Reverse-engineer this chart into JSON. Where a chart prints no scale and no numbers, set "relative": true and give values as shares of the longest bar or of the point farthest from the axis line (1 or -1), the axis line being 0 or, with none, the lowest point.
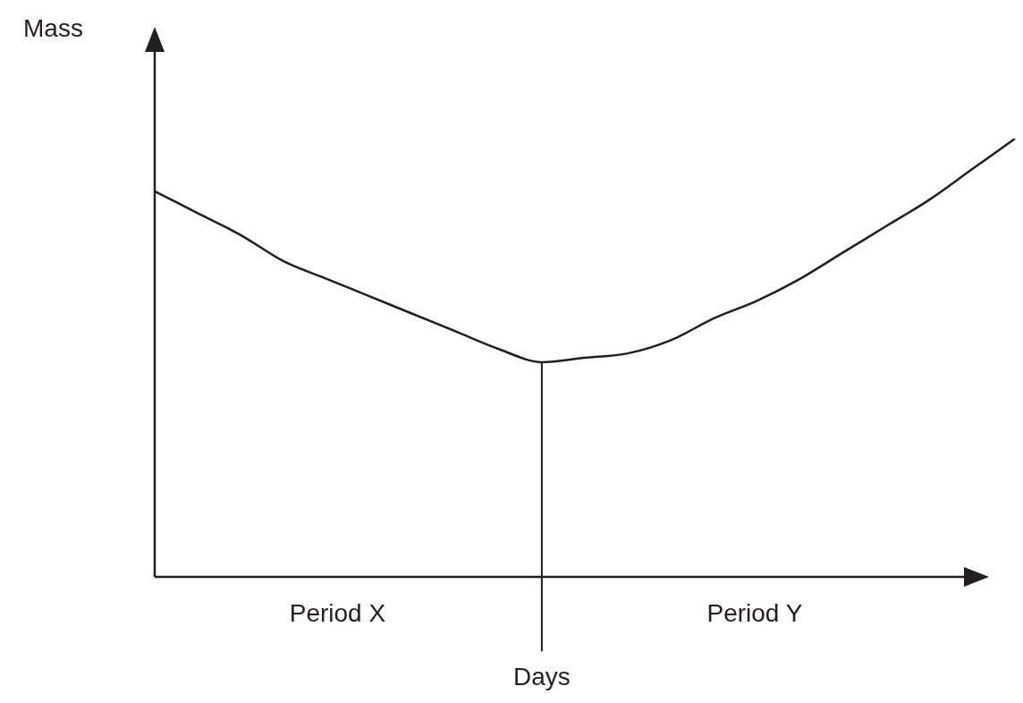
{
  "chart_data": {
    "type": "line",
    "relative": true,
    "xlabel": "Days",
    "ylabel": "Mass",
    "categories": [
      null,
      null,
      null,
      null,
      null,
      null,
      null,
      null,
      null,
      null,
      null,
      null,
      null,
      null,
      null,
      null,
      null,
      null,
      null,
      null,
      null
    ],
    "series": [
      {
        "color": "#231f20",
        "values": [
          0.88,
          0.83,
          0.78,
          0.72,
          0.68,
          0.64,
          0.6,
          0.56,
          0.52,
          0.49,
          0.5,
          0.51,
          0.54,
          0.59,
          0.63,
          0.68,
          0.74,
          0.8,
          0.86,
          0.93,
          1
        ]
      }
    ],
    "annotations": [
      "Period X",
      "Period Y"
    ],
    "grid": false,
    "legend": false,
    "marker": "none",
    "line_style": "solid"
  }
}
